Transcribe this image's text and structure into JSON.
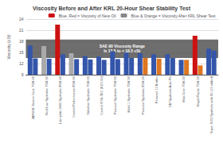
{
  "chart_data": {
    "type": "bar",
    "title": "Viscosity Before and After KRL 20-Hour Shear Stability Test",
    "ylabel": "Viscosity (cSt)",
    "categories": [
      "AMSOIL Severe Gear 75W-90",
      "Red Line Synthetic 75W-90",
      "Lubriplate 2400 Synthetic 85W-90",
      "Castrol Performance 85W-90",
      "Valvoline Synthetic 75W-90",
      "Castrol SYN-TEC (KZX-90)",
      "Pennzoil Synthetic 75W-90",
      "Mobil 1 Synthetic 75W-90",
      "Pennzoil Synthetic 85W-90",
      "Pennzoil 13 Bottles",
      "GM Synthetic Auto Ptr",
      "Max Gear 75W-90",
      "Royal Purple 75W-90",
      "Super SXO Synthetic with 90 (13 added)"
    ],
    "series": [
      {
        "name": "Blue, Red = Viscosity of New Oil",
        "color": "#cc1111",
        "colors": [
          "#3355aa",
          "#aaaaaa",
          "#cc1111",
          "#aaaaaa",
          "#3355aa",
          "#3355aa",
          "#3355aa",
          "#3355aa",
          "#3355aa",
          "#3355aa",
          "#3355aa",
          "#3355aa",
          "#cc1111",
          "#3355aa"
        ],
        "values": [
          16.9,
          16.7,
          22.5,
          14.8,
          14.0,
          13.9,
          15.3,
          14.9,
          14.8,
          14.5,
          14.5,
          13.0,
          19.5,
          16.0
        ]
      },
      {
        "name": "Blue & Orange = Viscosity After KRL Shear Test",
        "color": "#888888",
        "colors": [
          "#3355aa",
          "#3355aa",
          "#3355aa",
          "#3355aa",
          "#3355aa",
          "#3355aa",
          "#3355aa",
          "#3355aa",
          "#dd7722",
          "#dd7722",
          "#3355aa",
          "#dd7722",
          "#dd7722",
          "#3355aa"
        ],
        "values": [
          13.4,
          13.3,
          14.5,
          13.2,
          13.1,
          13.0,
          13.2,
          13.5,
          13.5,
          13.3,
          13.5,
          13.0,
          11.5,
          15.5
        ]
      }
    ],
    "band": {
      "low": 13.5,
      "high": 18.5,
      "label": "SAE 90 Viscosity Range\nIs 13.5 to < 18.5 cSt",
      "color": "#555555"
    },
    "ylim": [
      9,
      24
    ],
    "yticks": [
      9,
      12,
      15,
      18,
      21,
      24
    ],
    "grid": true,
    "legend": "upper right"
  }
}
